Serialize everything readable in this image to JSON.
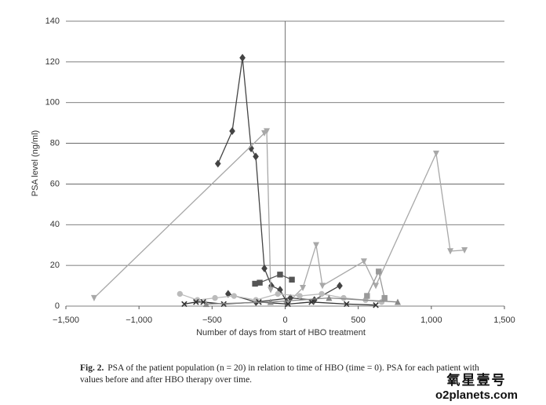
{
  "chart_data": {
    "type": "line",
    "x_label": "Number of days from start of HBO treatment",
    "y_label": "PSA level (ng/ml)",
    "xlim": [
      -1500,
      1500
    ],
    "xticks": [
      {
        "value": -1500,
        "label": "−1,500"
      },
      {
        "value": -1000,
        "label": "−1,000"
      },
      {
        "value": -500,
        "label": "−500"
      },
      0,
      500,
      {
        "value": 1000,
        "label": "1,000"
      },
      {
        "value": 1500,
        "label": "1,500"
      }
    ],
    "ylim": [
      0,
      140
    ],
    "yticks": [
      0,
      20,
      40,
      60,
      80,
      100,
      120,
      140
    ],
    "grid": true,
    "series": [
      {
        "color": "#444444",
        "marker": "diamond",
        "x": [
          -460,
          -362,
          -292,
          -233,
          -201,
          -142,
          -94,
          -35,
          10
        ],
        "values": [
          70,
          86,
          122,
          77.5,
          73.5,
          18.5,
          10,
          8,
          2
        ]
      },
      {
        "color": "#a8a8a8",
        "marker": "triangle-down",
        "x": [
          -1307,
          -142,
          -126,
          -99
        ],
        "values": [
          4,
          85,
          86,
          8
        ]
      },
      {
        "color": "#a8a8a8",
        "marker": "triangle-down",
        "x": [
          10,
          121,
          212,
          255,
          539,
          620,
          1033,
          1130,
          1227
        ],
        "values": [
          1,
          9,
          30,
          10,
          22,
          10,
          75,
          27,
          27.5
        ]
      },
      {
        "color": "#555555",
        "marker": "square",
        "x": [
          -206,
          -174,
          -35,
          46
        ],
        "values": [
          11,
          11.5,
          15.5,
          13
        ]
      },
      {
        "color": "#444444",
        "marker": "diamond",
        "x": [
          -390,
          -200,
          36,
          200,
          373
        ],
        "values": [
          6,
          2,
          4,
          3,
          10
        ]
      },
      {
        "color": "#bbbbbb",
        "marker": "circle",
        "x": [
          -720,
          -600,
          -480,
          -350,
          -200,
          -50,
          100,
          250,
          400,
          550,
          660
        ],
        "values": [
          6,
          3,
          4,
          5,
          3,
          6,
          5,
          6,
          4,
          3,
          2
        ]
      },
      {
        "color": "#333333",
        "marker": "x",
        "x": [
          -690,
          -610,
          -560,
          -420,
          -180,
          20,
          180,
          420,
          620
        ],
        "values": [
          1,
          2,
          2,
          1,
          2,
          1,
          2,
          1,
          0.5
        ]
      },
      {
        "color": "#888888",
        "marker": "triangle",
        "x": [
          -540,
          -100,
          300,
          770
        ],
        "values": [
          1,
          2,
          4,
          2
        ]
      },
      {
        "color": "#999999",
        "marker": "square",
        "x": [
          560,
          640,
          680
        ],
        "values": [
          5,
          17,
          4
        ]
      }
    ]
  },
  "caption": {
    "label": "Fig. 2.",
    "text": "PSA of the patient population (n = 20) in relation to time of HBO (time = 0). PSA for each patient with values before and after HBO therapy over time."
  },
  "watermark": {
    "name": "氧星壹号",
    "url": "o2planets.com"
  }
}
